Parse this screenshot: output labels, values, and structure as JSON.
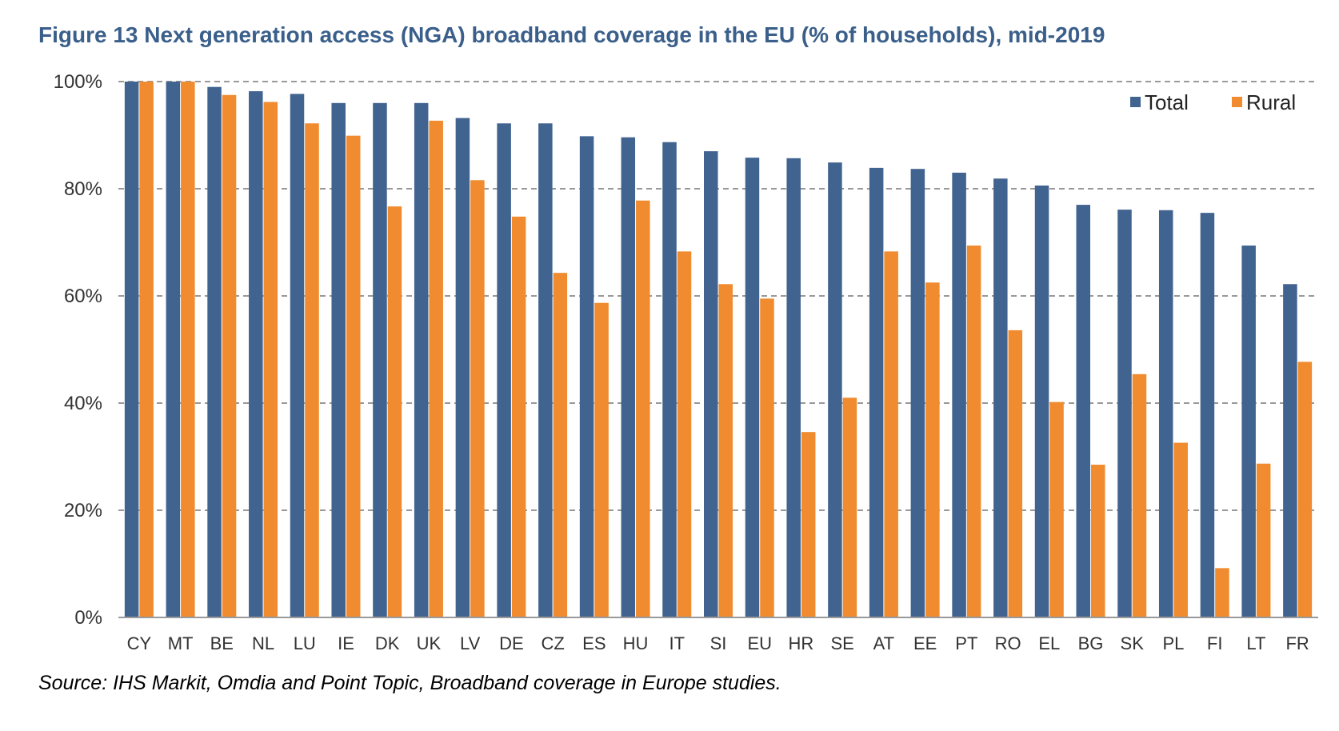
{
  "chart_data": {
    "type": "bar",
    "title": "Figure 13 Next generation access (NGA) broadband coverage in the EU (% of households), mid-2019",
    "source": "Source: IHS Markit, Omdia and Point Topic, Broadband coverage in Europe studies.",
    "categories": [
      "CY",
      "MT",
      "BE",
      "NL",
      "LU",
      "IE",
      "DK",
      "UK",
      "LV",
      "DE",
      "CZ",
      "ES",
      "HU",
      "IT",
      "SI",
      "EU",
      "HR",
      "SE",
      "AT",
      "EE",
      "PT",
      "RO",
      "EL",
      "BG",
      "SK",
      "PL",
      "FI",
      "LT",
      "FR"
    ],
    "series": [
      {
        "name": "Total",
        "color": "#41638f",
        "values": [
          100,
          100,
          99,
          98.2,
          97.7,
          96,
          96,
          96,
          93.2,
          92.2,
          92.2,
          89.8,
          89.6,
          88.7,
          87,
          85.8,
          85.7,
          84.9,
          83.9,
          83.7,
          83,
          81.9,
          80.6,
          77,
          76.1,
          76,
          75.5,
          69.4,
          62.2
        ]
      },
      {
        "name": "Rural",
        "color": "#f08b2f",
        "values": [
          100,
          100,
          97.5,
          96.2,
          92.2,
          89.9,
          76.7,
          92.7,
          81.6,
          74.8,
          64.3,
          58.7,
          77.8,
          68.3,
          62.2,
          59.5,
          34.6,
          41,
          68.3,
          62.5,
          69.4,
          53.6,
          40.2,
          28.5,
          45.4,
          32.6,
          9.2,
          28.7,
          47.7
        ]
      }
    ],
    "ylim": [
      0,
      100
    ],
    "yticks": [
      0,
      20,
      40,
      60,
      80,
      100
    ],
    "ytick_labels": [
      "0%",
      "20%",
      "40%",
      "60%",
      "80%",
      "100%"
    ],
    "xlabel": "",
    "ylabel": "",
    "grid": "dashed horizontal",
    "legend": "top-right"
  }
}
